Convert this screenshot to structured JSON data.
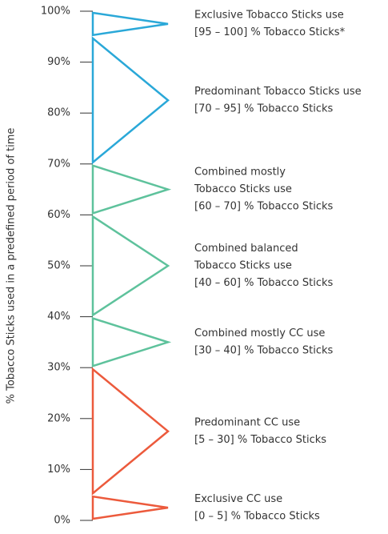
{
  "chart_data": {
    "type": "range-triangle",
    "ylabel": "% Tobacco Sticks used in a predefined period of time",
    "ylim": [
      0,
      100
    ],
    "yticks": [
      {
        "value": 0,
        "label": "0%"
      },
      {
        "value": 10,
        "label": "10%"
      },
      {
        "value": 20,
        "label": "20%"
      },
      {
        "value": 30,
        "label": "30%"
      },
      {
        "value": 40,
        "label": "40%"
      },
      {
        "value": 50,
        "label": "50%"
      },
      {
        "value": 60,
        "label": "60%"
      },
      {
        "value": 70,
        "label": "70%"
      },
      {
        "value": 80,
        "label": "80%"
      },
      {
        "value": 90,
        "label": "90%"
      },
      {
        "value": 100,
        "label": "100%"
      }
    ],
    "bands": [
      {
        "lines": [
          "Exclusive Tobacco Sticks use",
          "[95 – 100] % Tobacco Sticks*"
        ],
        "range": [
          95,
          100
        ],
        "color": "#2aa8d8"
      },
      {
        "lines": [
          "Predominant Tobacco Sticks use",
          "[70 – 95] % Tobacco Sticks"
        ],
        "range": [
          70,
          95
        ],
        "color": "#2aa8d8"
      },
      {
        "lines": [
          "Combined mostly",
          "Tobacco Sticks use",
          "[60 – 70] % Tobacco Sticks"
        ],
        "range": [
          60,
          70
        ],
        "color": "#5ec29c"
      },
      {
        "lines": [
          "Combined balanced",
          "Tobacco Sticks use",
          "[40 – 60] % Tobacco Sticks"
        ],
        "range": [
          40,
          60
        ],
        "color": "#5ec29c"
      },
      {
        "lines": [
          "Combined mostly CC use",
          "[30 – 40] % Tobacco Sticks"
        ],
        "range": [
          30,
          40
        ],
        "color": "#5ec29c"
      },
      {
        "lines": [
          "Predominant CC use",
          "[5 – 30] % Tobacco Sticks"
        ],
        "range": [
          5,
          30
        ],
        "color": "#ec5a3c"
      },
      {
        "lines": [
          "Exclusive CC use",
          "[0 – 5] % Tobacco Sticks"
        ],
        "range": [
          0,
          5
        ],
        "color": "#ec5a3c"
      }
    ]
  }
}
